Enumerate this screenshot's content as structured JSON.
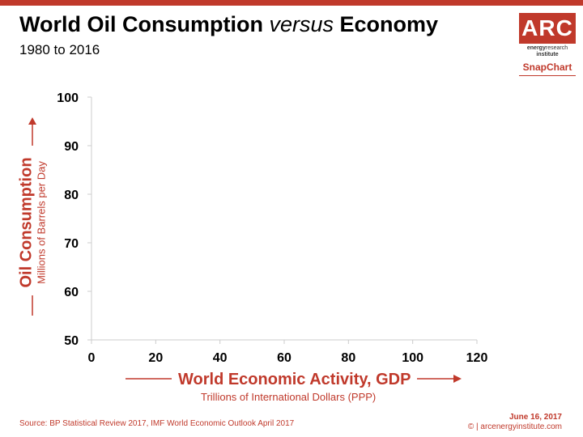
{
  "header": {
    "title_part1": "World Oil Consumption ",
    "title_part2": "versus",
    "title_part3": " Economy",
    "subtitle": "1980 to 2016"
  },
  "logo": {
    "text": "ARC",
    "line1_bold": "energy",
    "line1_light": "research",
    "line2": "institute",
    "snapchart": "SnapChart"
  },
  "chart_data": {
    "type": "scatter",
    "title": "World Oil Consumption versus Economy",
    "subtitle": "1980 to 2016",
    "xlabel": "World Economic Activity, GDP",
    "xlabel_sub": "Trillions of International Dollars (PPP)",
    "ylabel": "Oil Consumption",
    "ylabel_sub": "Millions of Barrels per Day",
    "xlim": [
      0,
      120
    ],
    "ylim": [
      50,
      100
    ],
    "xticks": [
      0,
      20,
      40,
      60,
      80,
      100,
      120
    ],
    "yticks": [
      50,
      60,
      70,
      80,
      90,
      100
    ],
    "points": [],
    "grid": false
  },
  "footer": {
    "source": "Source: BP Statistical Review 2017, IMF World Economic Outlook April 2017",
    "date": "June 16, 2017",
    "credit": "© | arcenergyinstitute.com"
  },
  "colors": {
    "accent": "#c0392b",
    "axis": "#cccccc"
  }
}
